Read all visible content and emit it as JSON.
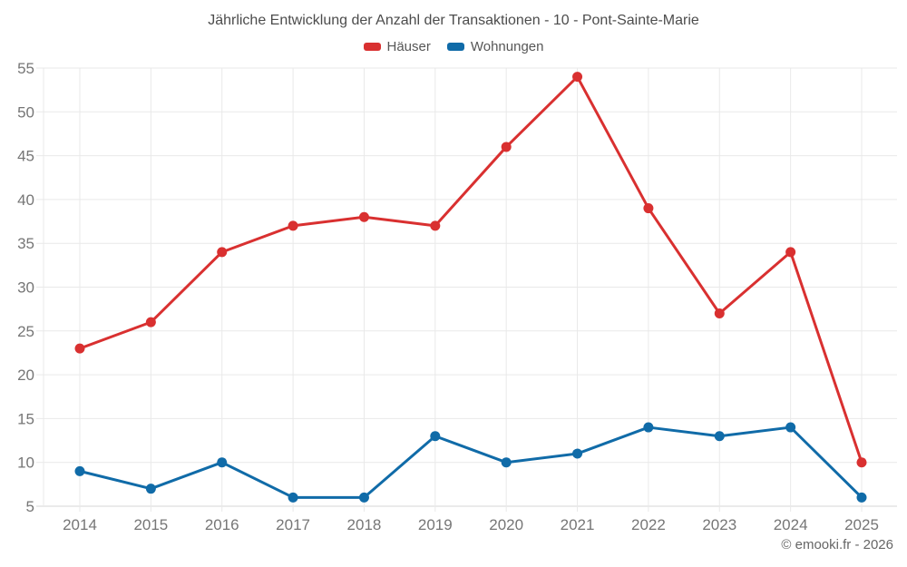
{
  "title": "Jährliche Entwicklung der Anzahl der Transaktionen - 10 - Pont-Sainte-Marie",
  "footer_credit": "© emooki.fr - 2026",
  "chart_data": {
    "type": "line",
    "title": "Jährliche Entwicklung der Anzahl der Transaktionen - 10 - Pont-Sainte-Marie",
    "xlabel": "",
    "ylabel": "",
    "categories": [
      "2014",
      "2015",
      "2016",
      "2017",
      "2018",
      "2019",
      "2020",
      "2021",
      "2022",
      "2023",
      "2024",
      "2025"
    ],
    "series": [
      {
        "name": "Häuser",
        "color": "#d93030",
        "values": [
          23,
          26,
          34,
          37,
          38,
          37,
          46,
          54,
          39,
          27,
          34,
          10
        ]
      },
      {
        "name": "Wohnungen",
        "color": "#106ba8",
        "values": [
          9,
          7,
          10,
          6,
          6,
          13,
          10,
          11,
          14,
          13,
          14,
          6
        ]
      }
    ],
    "ylim": [
      5,
      55
    ],
    "ytick_step": 5,
    "grid": true,
    "legend_position": "top"
  }
}
